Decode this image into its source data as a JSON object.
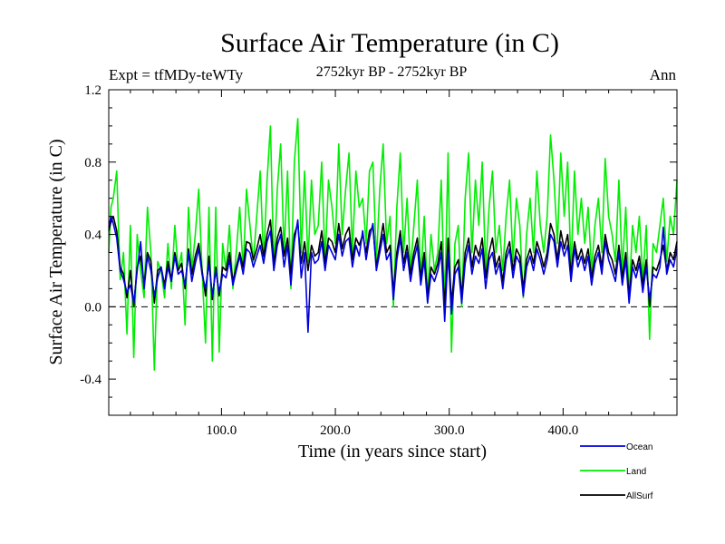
{
  "chart_data": {
    "type": "line",
    "title": "Surface Air Temperature (in C)",
    "subtitle": "2752kyr BP - 2752kyr BP",
    "left_label": "Expt = tfMDy-teWTy",
    "right_label": "Ann",
    "xlabel": "Time (in years since start)",
    "ylabel": "Surface Air Temperature (in C)",
    "xlim": [
      1,
      500
    ],
    "ylim": [
      -0.6,
      1.2
    ],
    "x_ticks": [
      100,
      200,
      300,
      400
    ],
    "x_tick_labels": [
      "100.0",
      "200.0",
      "300.0",
      "400.0"
    ],
    "y_ticks": [
      -0.4,
      0.0,
      0.4,
      0.8,
      1.2
    ],
    "y_tick_labels": [
      "-0.4",
      "0.0",
      "0.4",
      "0.8",
      "1.2"
    ],
    "reference_line": 0.0,
    "legend_position": "bottom-right",
    "series": [
      {
        "name": "Land",
        "color": "#00ee00",
        "x": [
          1,
          3,
          5,
          8,
          11,
          14,
          17,
          20,
          23,
          26,
          29,
          32,
          35,
          38,
          41,
          44,
          47,
          50,
          53,
          56,
          59,
          62,
          65,
          68,
          71,
          74,
          77,
          80,
          83,
          86,
          89,
          92,
          95,
          98,
          101,
          104,
          107,
          110,
          113,
          116,
          119,
          122,
          125,
          128,
          131,
          134,
          137,
          140,
          143,
          146,
          149,
          152,
          155,
          158,
          161,
          164,
          167,
          170,
          173,
          176,
          179,
          182,
          185,
          188,
          191,
          194,
          197,
          200,
          203,
          206,
          209,
          212,
          215,
          218,
          221,
          224,
          227,
          230,
          233,
          236,
          239,
          242,
          245,
          248,
          251,
          254,
          257,
          260,
          263,
          266,
          269,
          272,
          275,
          278,
          281,
          284,
          287,
          290,
          293,
          296,
          299,
          302,
          305,
          308,
          311,
          314,
          317,
          320,
          323,
          326,
          329,
          332,
          335,
          338,
          341,
          344,
          347,
          350,
          353,
          356,
          359,
          362,
          365,
          368,
          371,
          374,
          377,
          380,
          383,
          386,
          389,
          392,
          395,
          398,
          401,
          404,
          407,
          410,
          413,
          416,
          419,
          422,
          425,
          428,
          431,
          434,
          437,
          440,
          443,
          446,
          449,
          452,
          455,
          458,
          461,
          464,
          467,
          470,
          473,
          476,
          479,
          482,
          485,
          488,
          491,
          494,
          497,
          500
        ],
        "values": [
          0.3,
          0.55,
          0.6,
          0.75,
          0.15,
          0.3,
          -0.15,
          0.45,
          -0.28,
          0.4,
          0.2,
          0.05,
          0.55,
          0.3,
          -0.35,
          0.25,
          0.2,
          0.05,
          0.35,
          0.1,
          0.45,
          0.2,
          0.3,
          -0.1,
          0.55,
          0.2,
          0.4,
          0.65,
          0.2,
          -0.2,
          0.55,
          -0.3,
          0.55,
          -0.25,
          0.35,
          0.2,
          0.45,
          0.1,
          0.3,
          0.55,
          0.2,
          0.65,
          0.45,
          0.25,
          0.5,
          0.75,
          0.25,
          0.7,
          1.0,
          0.2,
          0.65,
          0.9,
          0.3,
          0.75,
          0.1,
          0.8,
          1.04,
          0.3,
          0.75,
          0.25,
          0.7,
          0.4,
          0.45,
          0.8,
          0.25,
          0.7,
          0.55,
          0.35,
          0.9,
          0.4,
          0.65,
          0.85,
          0.3,
          0.75,
          0.55,
          0.6,
          0.35,
          0.75,
          0.8,
          0.25,
          0.65,
          0.9,
          0.35,
          0.5,
          0.0,
          0.55,
          0.85,
          0.3,
          0.6,
          0.2,
          0.45,
          0.7,
          0.15,
          0.5,
          0.05,
          0.4,
          0.2,
          0.3,
          0.7,
          0.0,
          0.85,
          -0.25,
          0.35,
          0.45,
          0.0,
          0.6,
          0.85,
          0.3,
          0.7,
          0.45,
          0.8,
          0.2,
          0.55,
          0.75,
          0.3,
          0.45,
          0.2,
          0.5,
          0.7,
          0.25,
          0.6,
          0.45,
          0.05,
          0.4,
          0.6,
          0.3,
          0.75,
          0.45,
          0.3,
          0.5,
          0.95,
          0.7,
          0.35,
          0.85,
          0.5,
          0.8,
          0.2,
          0.75,
          0.4,
          0.6,
          0.35,
          0.55,
          0.2,
          0.45,
          0.6,
          0.3,
          0.82,
          0.5,
          0.4,
          0.25,
          0.7,
          0.2,
          0.55,
          0.05,
          0.45,
          0.3,
          0.5,
          0.15,
          0.45,
          -0.18,
          0.35,
          0.3,
          0.45,
          0.6,
          0.25,
          0.5,
          0.4,
          0.7
        ]
      },
      {
        "name": "AllSurf",
        "color": "#000000",
        "x": [
          1,
          3,
          5,
          8,
          11,
          14,
          17,
          20,
          23,
          26,
          29,
          32,
          35,
          38,
          41,
          44,
          47,
          50,
          53,
          56,
          59,
          62,
          65,
          68,
          71,
          74,
          77,
          80,
          83,
          86,
          89,
          92,
          95,
          98,
          101,
          104,
          107,
          110,
          113,
          116,
          119,
          122,
          125,
          128,
          131,
          134,
          137,
          140,
          143,
          146,
          149,
          152,
          155,
          158,
          161,
          164,
          167,
          170,
          173,
          176,
          179,
          182,
          185,
          188,
          191,
          194,
          197,
          200,
          203,
          206,
          209,
          212,
          215,
          218,
          221,
          224,
          227,
          230,
          233,
          236,
          239,
          242,
          245,
          248,
          251,
          254,
          257,
          260,
          263,
          266,
          269,
          272,
          275,
          278,
          281,
          284,
          287,
          290,
          293,
          296,
          299,
          302,
          305,
          308,
          311,
          314,
          317,
          320,
          323,
          326,
          329,
          332,
          335,
          338,
          341,
          344,
          347,
          350,
          353,
          356,
          359,
          362,
          365,
          368,
          371,
          374,
          377,
          380,
          383,
          386,
          389,
          392,
          395,
          398,
          401,
          404,
          407,
          410,
          413,
          416,
          419,
          422,
          425,
          428,
          431,
          434,
          437,
          440,
          443,
          446,
          449,
          452,
          455,
          458,
          461,
          464,
          467,
          470,
          473,
          476,
          479,
          482,
          485,
          488,
          491,
          494,
          497,
          500
        ],
        "values": [
          0.42,
          0.47,
          0.5,
          0.42,
          0.22,
          0.18,
          0.05,
          0.2,
          0.0,
          0.22,
          0.28,
          0.12,
          0.3,
          0.25,
          0.02,
          0.2,
          0.22,
          0.12,
          0.25,
          0.15,
          0.3,
          0.2,
          0.24,
          0.1,
          0.32,
          0.18,
          0.28,
          0.35,
          0.2,
          0.06,
          0.28,
          0.04,
          0.22,
          0.06,
          0.22,
          0.2,
          0.3,
          0.14,
          0.22,
          0.3,
          0.22,
          0.36,
          0.35,
          0.26,
          0.32,
          0.4,
          0.28,
          0.4,
          0.48,
          0.24,
          0.38,
          0.44,
          0.28,
          0.38,
          0.18,
          0.4,
          0.46,
          0.24,
          0.36,
          0.2,
          0.34,
          0.28,
          0.3,
          0.42,
          0.24,
          0.38,
          0.36,
          0.3,
          0.46,
          0.32,
          0.4,
          0.44,
          0.26,
          0.38,
          0.34,
          0.4,
          0.3,
          0.42,
          0.44,
          0.22,
          0.34,
          0.46,
          0.3,
          0.34,
          0.08,
          0.3,
          0.42,
          0.24,
          0.34,
          0.18,
          0.3,
          0.38,
          0.16,
          0.3,
          0.06,
          0.22,
          0.18,
          0.24,
          0.36,
          0.0,
          0.38,
          0.02,
          0.22,
          0.26,
          0.06,
          0.3,
          0.38,
          0.22,
          0.34,
          0.28,
          0.38,
          0.16,
          0.3,
          0.38,
          0.22,
          0.28,
          0.14,
          0.3,
          0.36,
          0.2,
          0.32,
          0.28,
          0.1,
          0.26,
          0.32,
          0.24,
          0.36,
          0.3,
          0.22,
          0.3,
          0.46,
          0.4,
          0.26,
          0.42,
          0.32,
          0.4,
          0.18,
          0.36,
          0.26,
          0.32,
          0.24,
          0.32,
          0.16,
          0.28,
          0.34,
          0.22,
          0.4,
          0.3,
          0.26,
          0.18,
          0.34,
          0.16,
          0.3,
          0.06,
          0.26,
          0.2,
          0.28,
          0.12,
          0.26,
          0.0,
          0.22,
          0.2,
          0.26,
          0.34,
          0.2,
          0.3,
          0.26,
          0.36
        ]
      },
      {
        "name": "Ocean",
        "color": "#0000dd",
        "x": [
          1,
          3,
          5,
          8,
          11,
          14,
          17,
          20,
          23,
          26,
          29,
          32,
          35,
          38,
          41,
          44,
          47,
          50,
          53,
          56,
          59,
          62,
          65,
          68,
          71,
          74,
          77,
          80,
          83,
          86,
          89,
          92,
          95,
          98,
          101,
          104,
          107,
          110,
          113,
          116,
          119,
          122,
          125,
          128,
          131,
          134,
          137,
          140,
          143,
          146,
          149,
          152,
          155,
          158,
          161,
          164,
          167,
          170,
          173,
          176,
          179,
          182,
          185,
          188,
          191,
          194,
          197,
          200,
          203,
          206,
          209,
          212,
          215,
          218,
          221,
          224,
          227,
          230,
          233,
          236,
          239,
          242,
          245,
          248,
          251,
          254,
          257,
          260,
          263,
          266,
          269,
          272,
          275,
          278,
          281,
          284,
          287,
          290,
          293,
          296,
          299,
          302,
          305,
          308,
          311,
          314,
          317,
          320,
          323,
          326,
          329,
          332,
          335,
          338,
          341,
          344,
          347,
          350,
          353,
          356,
          359,
          362,
          365,
          368,
          371,
          374,
          377,
          380,
          383,
          386,
          389,
          392,
          395,
          398,
          401,
          404,
          407,
          410,
          413,
          416,
          419,
          422,
          425,
          428,
          431,
          434,
          437,
          440,
          443,
          446,
          449,
          452,
          455,
          458,
          461,
          464,
          467,
          470,
          473,
          476,
          479,
          482,
          485,
          488,
          491,
          494,
          497,
          500
        ],
        "values": [
          0.44,
          0.5,
          0.46,
          0.38,
          0.2,
          0.15,
          0.08,
          0.12,
          0.02,
          0.2,
          0.36,
          0.1,
          0.28,
          0.2,
          0.06,
          0.16,
          0.22,
          0.1,
          0.22,
          0.14,
          0.28,
          0.18,
          0.2,
          0.12,
          0.3,
          0.14,
          0.24,
          0.32,
          0.18,
          0.1,
          0.24,
          0.06,
          0.2,
          0.08,
          0.18,
          0.16,
          0.26,
          0.12,
          0.2,
          0.28,
          0.18,
          0.32,
          0.3,
          0.22,
          0.28,
          0.34,
          0.24,
          0.36,
          0.42,
          0.2,
          0.34,
          0.4,
          0.22,
          0.34,
          0.12,
          0.36,
          0.48,
          0.16,
          0.3,
          -0.14,
          0.3,
          0.24,
          0.26,
          0.36,
          0.2,
          0.34,
          0.3,
          0.26,
          0.4,
          0.28,
          0.36,
          0.38,
          0.22,
          0.34,
          0.28,
          0.42,
          0.26,
          0.38,
          0.46,
          0.2,
          0.3,
          0.4,
          0.26,
          0.3,
          0.04,
          0.26,
          0.38,
          0.2,
          0.3,
          0.14,
          0.26,
          0.34,
          0.12,
          0.26,
          0.02,
          0.18,
          0.14,
          0.2,
          0.3,
          -0.08,
          0.3,
          -0.04,
          0.18,
          0.22,
          0.02,
          0.24,
          0.34,
          0.18,
          0.28,
          0.24,
          0.32,
          0.1,
          0.26,
          0.3,
          0.18,
          0.24,
          0.1,
          0.26,
          0.32,
          0.16,
          0.28,
          0.24,
          0.06,
          0.22,
          0.28,
          0.2,
          0.32,
          0.26,
          0.18,
          0.26,
          0.4,
          0.36,
          0.22,
          0.36,
          0.28,
          0.34,
          0.14,
          0.32,
          0.22,
          0.28,
          0.2,
          0.28,
          0.12,
          0.24,
          0.3,
          0.18,
          0.36,
          0.26,
          0.2,
          0.14,
          0.3,
          0.12,
          0.26,
          0.02,
          0.22,
          0.16,
          0.24,
          0.08,
          0.22,
          0.04,
          0.18,
          0.16,
          0.22,
          0.44,
          0.18,
          0.26,
          0.22,
          0.32
        ]
      }
    ],
    "legend_order": [
      "Ocean",
      "Land",
      "AllSurf"
    ]
  }
}
